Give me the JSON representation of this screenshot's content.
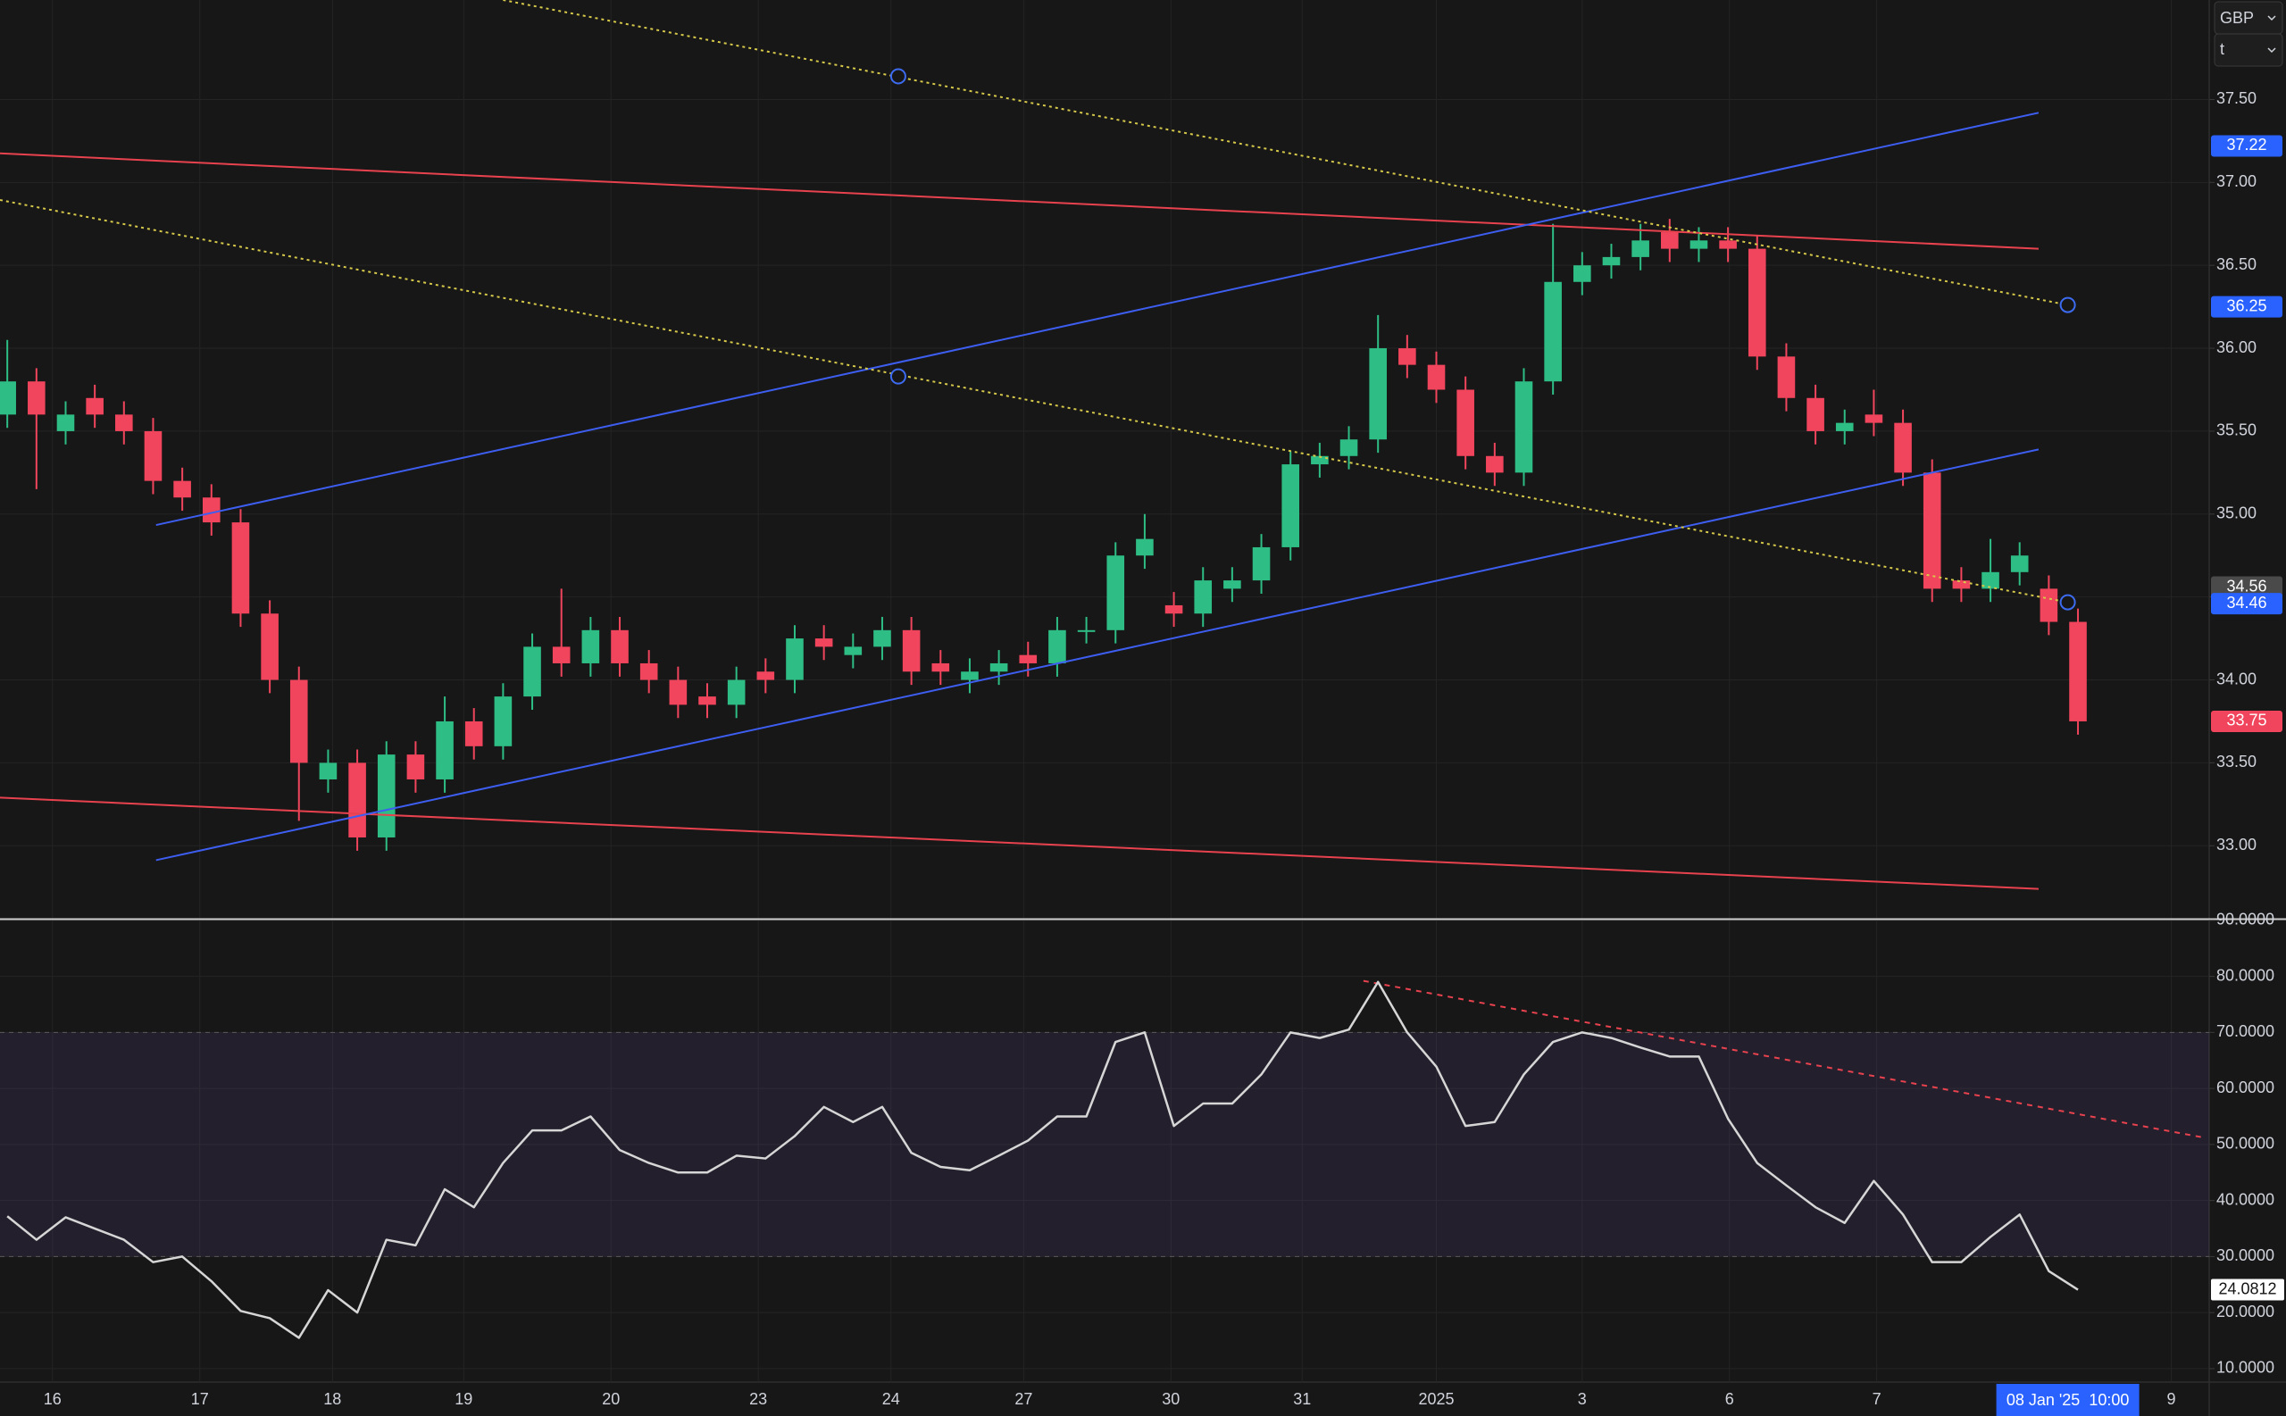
{
  "chart_data": [
    {
      "type": "candlestick",
      "currency": "GBP",
      "interval": "t",
      "up_color": "#2ebd85",
      "down_color": "#f0455c",
      "xlim": [
        -0.25,
        75.5
      ],
      "xticks": [
        {
          "value": 1.55,
          "label": "16"
        },
        {
          "value": 6.6,
          "label": "17"
        },
        {
          "value": 11.15,
          "label": "18"
        },
        {
          "value": 15.65,
          "label": "19"
        },
        {
          "value": 20.7,
          "label": "20"
        },
        {
          "value": 25.75,
          "label": "23"
        },
        {
          "value": 30.3,
          "label": "24"
        },
        {
          "value": 34.85,
          "label": "27"
        },
        {
          "value": 39.9,
          "label": "30"
        },
        {
          "value": 44.4,
          "label": "31"
        },
        {
          "value": 49,
          "label": "2025"
        },
        {
          "value": 54,
          "label": "3"
        },
        {
          "value": 59.05,
          "label": "6"
        },
        {
          "value": 64.1,
          "label": "7"
        },
        {
          "value": 74.2,
          "label": "9"
        }
      ],
      "crosshair": {
        "x": 70.65,
        "label": "08 Jan '25  10:00"
      },
      "ylim": [
        32.56,
        38.1
      ],
      "yticks": [
        {
          "value": 33,
          "label": "33.00"
        },
        {
          "value": 33.5,
          "label": "33.50"
        },
        {
          "value": 34,
          "label": "34.00"
        },
        {
          "value": 34.5,
          "label": "34.50"
        },
        {
          "value": 35,
          "label": "35.00"
        },
        {
          "value": 35.5,
          "label": "35.50"
        },
        {
          "value": 36,
          "label": "36.00"
        },
        {
          "value": 36.5,
          "label": "36.50"
        },
        {
          "value": 37,
          "label": "37.00"
        },
        {
          "value": 37.5,
          "label": "37.50"
        }
      ],
      "grid": true,
      "open": [
        35.6,
        35.8,
        35.5,
        35.7,
        35.6,
        35.5,
        35.2,
        35.1,
        34.95,
        34.4,
        34.0,
        33.4,
        33.5,
        33.05,
        33.55,
        33.4,
        33.75,
        33.6,
        33.9,
        34.2,
        34.1,
        34.3,
        34.1,
        34.0,
        33.9,
        33.85,
        34.05,
        34.0,
        34.25,
        34.15,
        34.2,
        34.3,
        34.1,
        34.0,
        34.05,
        34.15,
        34.1,
        34.3,
        34.3,
        34.75,
        34.45,
        34.4,
        34.55,
        34.6,
        34.8,
        35.3,
        35.35,
        35.45,
        36.0,
        35.9,
        35.75,
        35.35,
        35.25,
        35.8,
        36.4,
        36.5,
        36.55,
        36.7,
        36.6,
        36.65,
        36.6,
        35.95,
        35.7,
        35.5,
        35.6,
        35.55,
        35.25,
        34.6,
        34.55,
        34.65,
        34.55,
        34.35
      ],
      "high": [
        36.05,
        35.88,
        35.68,
        35.78,
        35.68,
        35.58,
        35.28,
        35.18,
        35.03,
        34.48,
        34.08,
        33.58,
        33.58,
        33.63,
        33.63,
        33.9,
        33.83,
        33.98,
        34.28,
        34.55,
        34.38,
        34.38,
        34.18,
        34.08,
        33.98,
        34.08,
        34.13,
        34.33,
        34.33,
        34.28,
        34.38,
        34.38,
        34.18,
        34.13,
        34.18,
        34.23,
        34.38,
        34.38,
        34.83,
        35.0,
        34.53,
        34.68,
        34.68,
        34.88,
        35.38,
        35.43,
        35.53,
        36.2,
        36.08,
        35.98,
        35.83,
        35.43,
        35.88,
        36.75,
        36.58,
        36.63,
        36.75,
        36.78,
        36.73,
        36.73,
        36.68,
        36.03,
        35.78,
        35.63,
        35.75,
        35.63,
        35.33,
        34.68,
        34.85,
        34.83,
        34.63,
        34.43
      ],
      "low": [
        35.52,
        35.15,
        35.42,
        35.52,
        35.42,
        35.12,
        35.02,
        34.87,
        34.32,
        33.92,
        33.15,
        33.32,
        32.97,
        32.97,
        33.32,
        33.32,
        33.52,
        33.52,
        33.82,
        34.02,
        34.02,
        34.02,
        33.92,
        33.77,
        33.77,
        33.77,
        33.92,
        33.92,
        34.12,
        34.07,
        34.12,
        33.97,
        33.97,
        33.92,
        33.97,
        34.02,
        34.02,
        34.22,
        34.22,
        34.67,
        34.32,
        34.32,
        34.47,
        34.52,
        34.72,
        35.22,
        35.27,
        35.37,
        35.82,
        35.67,
        35.27,
        35.17,
        35.17,
        35.72,
        36.32,
        36.42,
        36.47,
        36.52,
        36.52,
        36.52,
        35.87,
        35.62,
        35.42,
        35.42,
        35.47,
        35.17,
        34.47,
        34.47,
        34.47,
        34.57,
        34.27,
        33.67
      ],
      "close": [
        35.8,
        35.6,
        35.6,
        35.6,
        35.5,
        35.2,
        35.1,
        34.95,
        34.4,
        34.0,
        33.5,
        33.5,
        33.05,
        33.55,
        33.4,
        33.75,
        33.6,
        33.9,
        34.2,
        34.1,
        34.3,
        34.1,
        34.0,
        33.85,
        33.85,
        34.0,
        34.0,
        34.25,
        34.2,
        34.2,
        34.3,
        34.05,
        34.05,
        34.05,
        34.1,
        34.1,
        34.3,
        34.3,
        34.75,
        34.85,
        34.4,
        34.6,
        34.6,
        34.8,
        35.3,
        35.35,
        35.45,
        36.0,
        35.9,
        35.75,
        35.35,
        35.25,
        35.8,
        36.4,
        36.5,
        36.55,
        36.65,
        36.6,
        36.65,
        36.6,
        35.95,
        35.7,
        35.5,
        35.55,
        35.55,
        35.25,
        34.55,
        34.55,
        34.65,
        34.75,
        34.35,
        33.75
      ],
      "lines": [
        {
          "color": "#e8424f",
          "style": "solid",
          "points": [
            [
              -0.25,
              37.175
            ],
            [
              69.65,
              36.6
            ]
          ]
        },
        {
          "color": "#e8424f",
          "style": "solid",
          "points": [
            [
              -0.25,
              33.29
            ],
            [
              69.65,
              32.74
            ]
          ]
        },
        {
          "color": "#3d5ef0",
          "style": "solid",
          "points": [
            [
              5.1,
              34.934
            ],
            [
              69.65,
              37.42
            ]
          ]
        },
        {
          "color": "#3d5ef0",
          "style": "solid",
          "points": [
            [
              5.1,
              32.913
            ],
            [
              69.65,
              35.39
            ]
          ]
        },
        {
          "color": "#d6c94a",
          "style": "dotted",
          "points": [
            [
              17,
              38.1
            ],
            [
              70.65,
              36.261
            ]
          ],
          "handles": [
            [
              30.55,
              37.64
            ],
            [
              70.65,
              36.261
            ]
          ]
        },
        {
          "color": "#d6c94a",
          "style": "dotted",
          "points": [
            [
              -0.25,
              36.894
            ],
            [
              70.65,
              34.468
            ]
          ],
          "handles": [
            [
              30.55,
              35.83
            ],
            [
              70.65,
              34.468
            ]
          ]
        }
      ],
      "price_labels": [
        {
          "value": 37.22,
          "color": "#2962ff"
        },
        {
          "value": 36.25,
          "color": "#2962ff"
        },
        {
          "value": 34.56,
          "color": "#4a4a4a"
        },
        {
          "value": 34.46,
          "color": "#2962ff"
        }
      ]
    },
    {
      "type": "line",
      "color": "#d6d6d6",
      "ylim": [
        7.6,
        90.13
      ],
      "yticks": [
        {
          "value": 10,
          "label": "10.0000"
        },
        {
          "value": 20,
          "label": "20.0000"
        },
        {
          "value": 30,
          "label": "30.0000"
        },
        {
          "value": 40,
          "label": "40.0000"
        },
        {
          "value": 50,
          "label": "50.0000"
        },
        {
          "value": 60,
          "label": "60.0000"
        },
        {
          "value": 70,
          "label": "70.0000"
        },
        {
          "value": 80,
          "label": "80.0000"
        },
        {
          "value": 90,
          "label": "90.0000"
        }
      ],
      "band": [
        30,
        70
      ],
      "values": [
        37.2,
        33,
        37,
        35,
        33,
        29,
        30,
        25.6,
        20.3,
        19,
        15.5,
        24,
        20,
        33,
        32,
        42,
        38.8,
        46.7,
        52.5,
        52.5,
        55,
        49,
        46.7,
        45,
        45,
        48,
        47.5,
        51.5,
        56.7,
        54,
        56.7,
        48.5,
        46,
        45.4,
        48,
        50.7,
        55,
        55,
        68.3,
        70,
        53.3,
        57.3,
        57.3,
        62.5,
        70,
        69,
        70.5,
        79,
        70,
        63.9,
        53.3,
        54,
        62.5,
        68.3,
        70,
        69,
        67.3,
        65.7,
        65.7,
        54.6,
        46.7,
        42.7,
        38.8,
        36,
        43.5,
        37.5,
        29,
        29,
        33.5,
        37.5,
        27.4,
        24.0812
      ],
      "lines": [
        {
          "color": "#e8424f",
          "style": "dashed",
          "points": [
            [
              46.5,
              79.2
            ],
            [
              75.35,
              51.2
            ]
          ]
        }
      ]
    }
  ]
}
